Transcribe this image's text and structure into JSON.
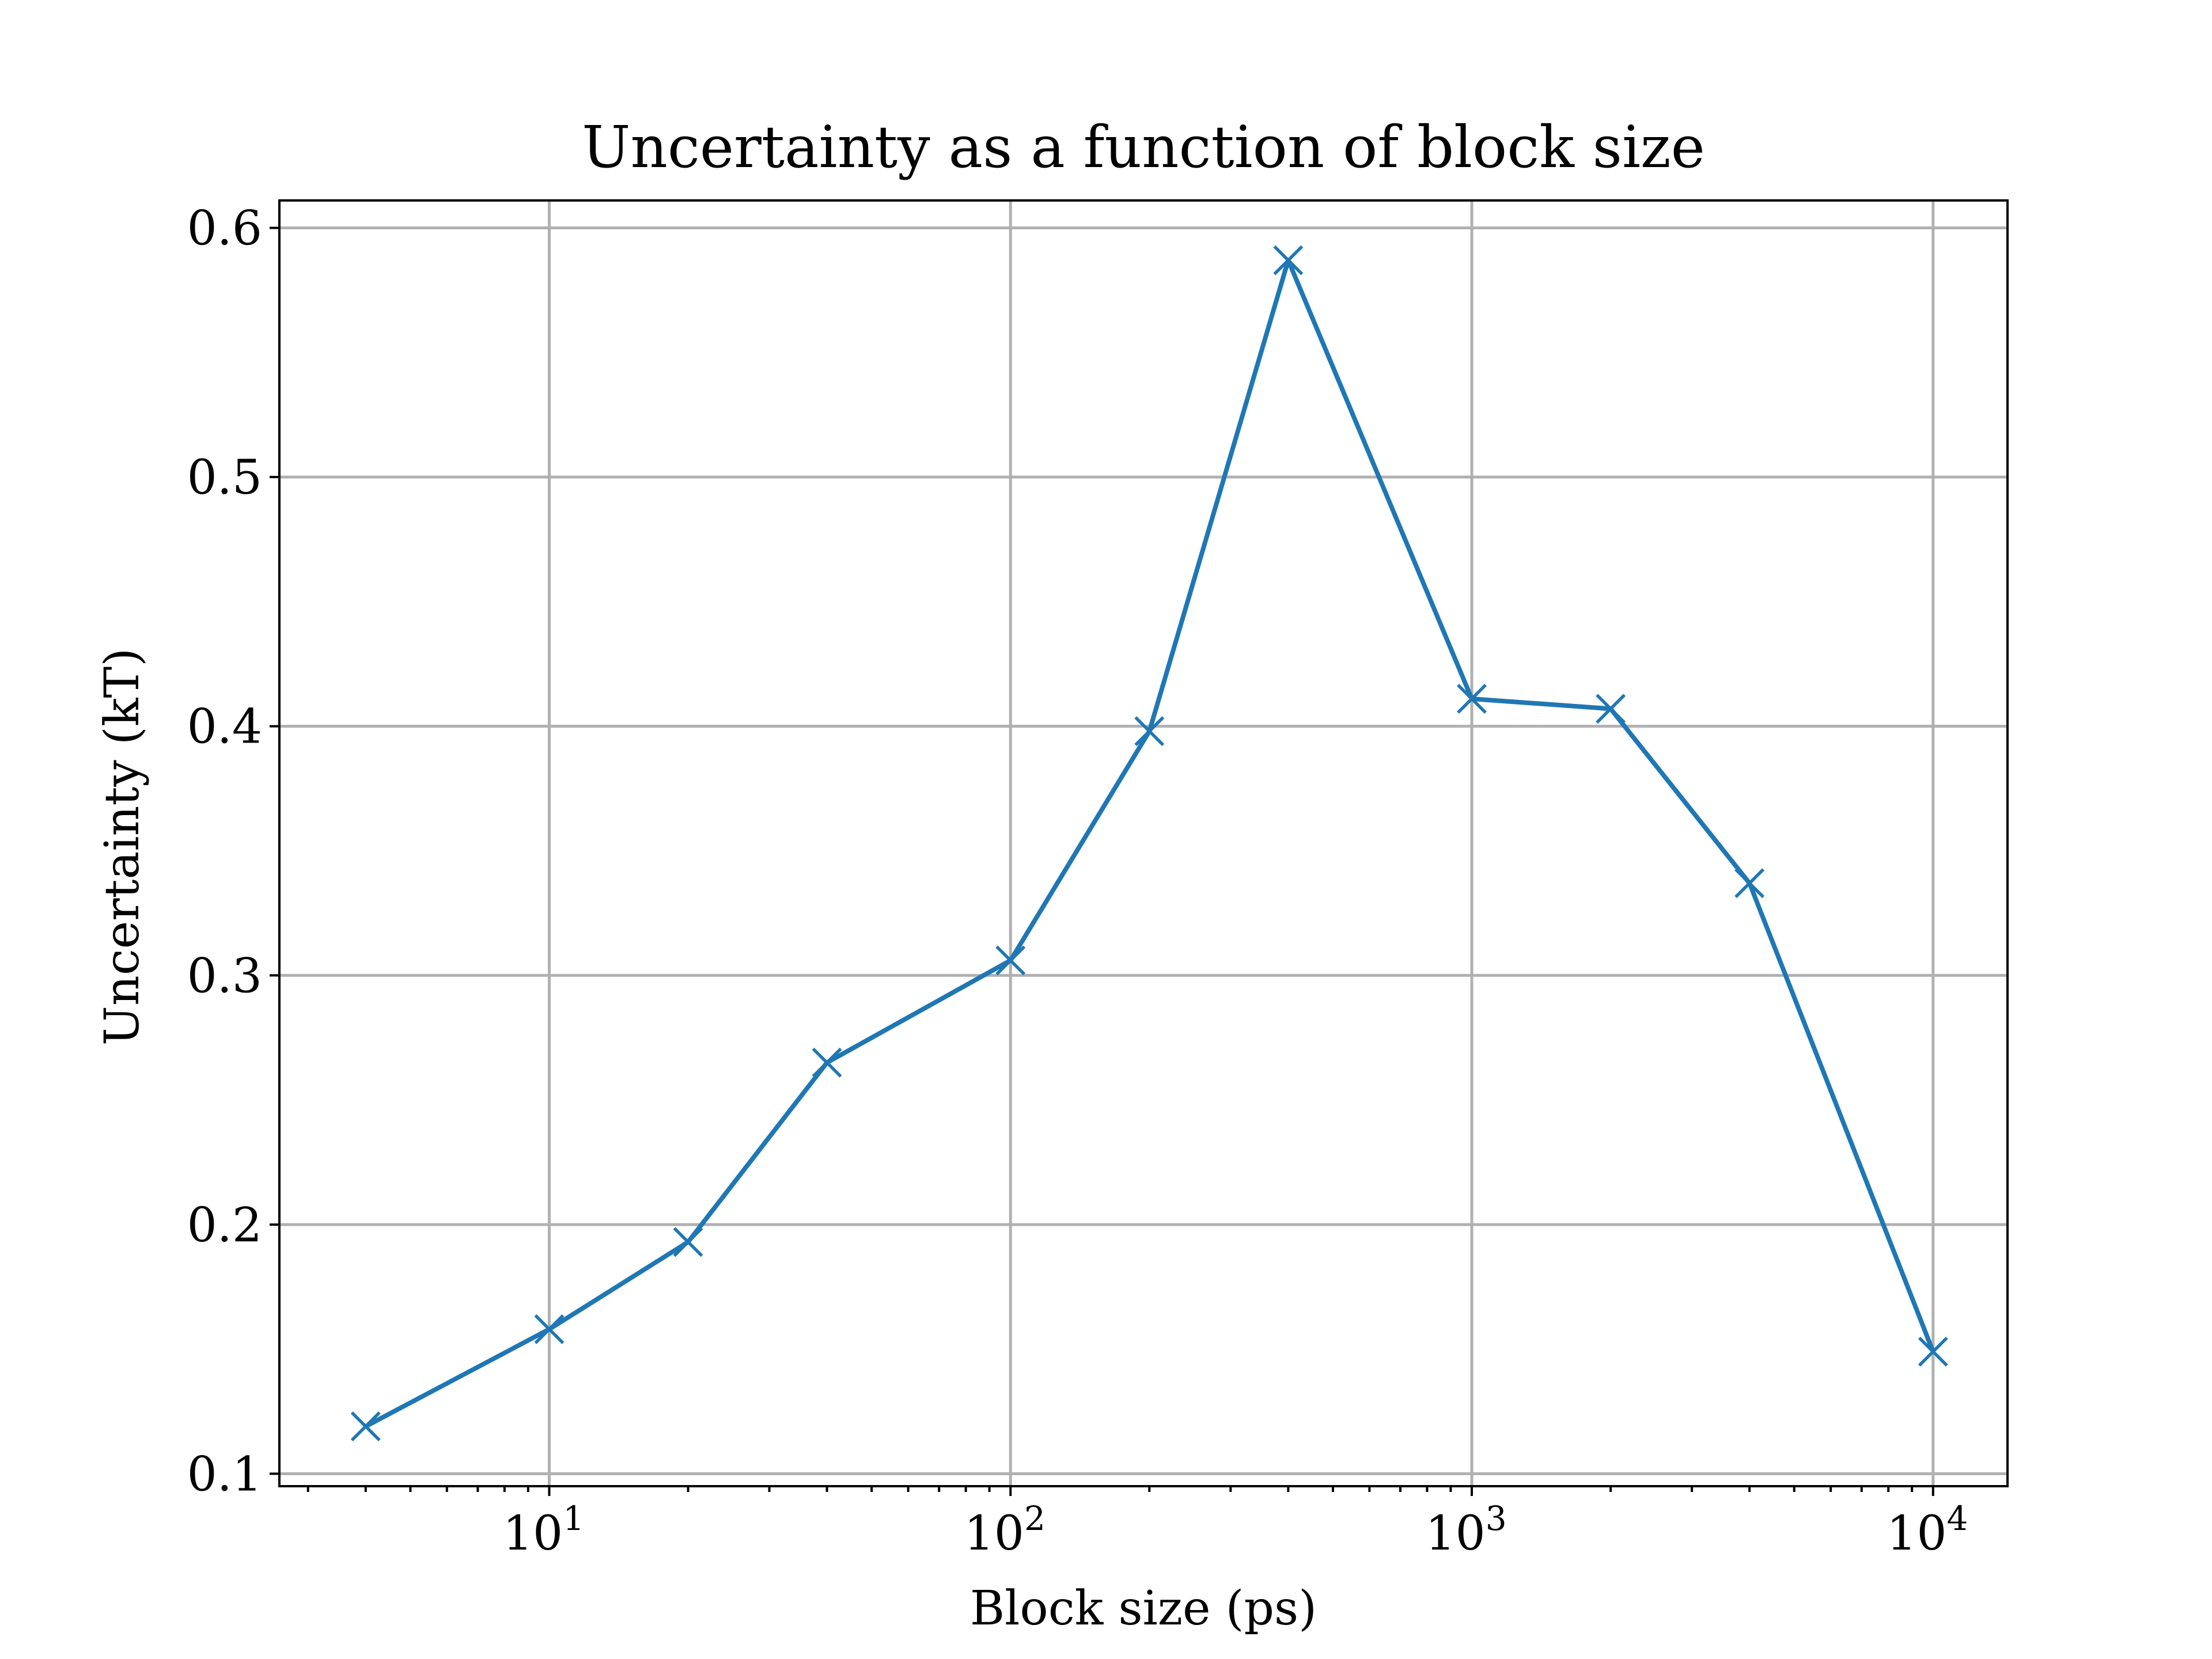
{
  "chart_data": {
    "type": "line",
    "title": "Uncertainty as a function of block size",
    "xlabel": "Block size (ps)",
    "ylabel": "Uncertainty (kT)",
    "xscale": "log",
    "xlim": [
      2.6,
      14500
    ],
    "ylim": [
      0.095,
      0.611
    ],
    "grid": true,
    "x_ticks": [
      {
        "base": "10",
        "exp": "1",
        "value": 10
      },
      {
        "base": "10",
        "exp": "2",
        "value": 100
      },
      {
        "base": "10",
        "exp": "3",
        "value": 1000
      },
      {
        "base": "10",
        "exp": "4",
        "value": 10000
      }
    ],
    "y_ticks": [
      {
        "label": "0.1",
        "value": 0.1
      },
      {
        "label": "0.2",
        "value": 0.2
      },
      {
        "label": "0.3",
        "value": 0.3
      },
      {
        "label": "0.4",
        "value": 0.4
      },
      {
        "label": "0.5",
        "value": 0.5
      },
      {
        "label": "0.6",
        "value": 0.6
      }
    ],
    "series": [
      {
        "color": "#1f77b4",
        "marker": "x",
        "x": [
          4,
          10,
          20,
          40,
          100,
          200,
          400,
          1000,
          2000,
          4000,
          10000
        ],
        "y": [
          0.119,
          0.158,
          0.193,
          0.265,
          0.306,
          0.398,
          0.587,
          0.411,
          0.407,
          0.337,
          0.149
        ]
      }
    ]
  }
}
